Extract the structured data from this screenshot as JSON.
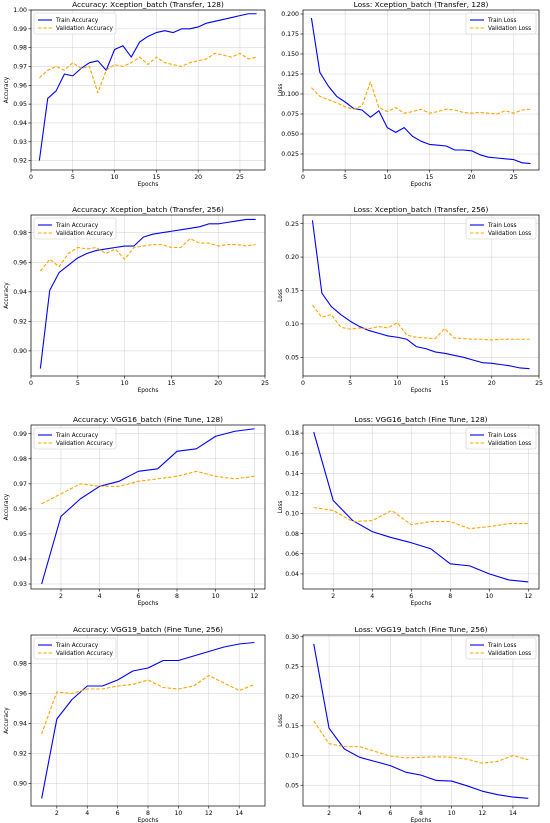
{
  "figure": {
    "train_color": "#0000ff",
    "val_color": "#ffa500"
  },
  "chart_data": [
    {
      "type": "line",
      "title": "Accuracy: Xception_batch (Transfer, 128)",
      "xlabel": "Epochs",
      "ylabel": "Accuracy",
      "xlim": [
        0,
        28
      ],
      "ylim": [
        0.915,
        1.0
      ],
      "xticks": [
        0,
        5,
        10,
        15,
        20,
        25
      ],
      "yticks": [
        0.92,
        0.93,
        0.94,
        0.95,
        0.96,
        0.97,
        0.98,
        0.99,
        1.0
      ],
      "ytick_labels": [
        "0.92",
        "0.93",
        "0.94",
        "0.95",
        "0.96",
        "0.97",
        "0.98",
        "0.99",
        "1.00"
      ],
      "legend": "top-left",
      "grid": true,
      "x": [
        1,
        2,
        3,
        4,
        5,
        6,
        7,
        8,
        9,
        10,
        11,
        12,
        13,
        14,
        15,
        16,
        17,
        18,
        19,
        20,
        21,
        22,
        23,
        24,
        25,
        26,
        27
      ],
      "series": [
        {
          "name": "Train Accuracy",
          "style": "solid",
          "values": [
            0.92,
            0.953,
            0.957,
            0.966,
            0.965,
            0.969,
            0.972,
            0.973,
            0.968,
            0.979,
            0.981,
            0.975,
            0.983,
            0.986,
            0.988,
            0.989,
            0.988,
            0.99,
            0.99,
            0.991,
            0.993,
            0.994,
            0.995,
            0.996,
            0.997,
            0.998,
            0.998
          ]
        },
        {
          "name": "Validation Accuracy",
          "style": "dashed",
          "values": [
            0.964,
            0.968,
            0.97,
            0.968,
            0.972,
            0.969,
            0.97,
            0.956,
            0.968,
            0.971,
            0.97,
            0.972,
            0.975,
            0.971,
            0.975,
            0.972,
            0.971,
            0.97,
            0.972,
            0.973,
            0.974,
            0.977,
            0.976,
            0.975,
            0.977,
            0.974,
            0.975
          ]
        }
      ]
    },
    {
      "type": "line",
      "title": "Loss: Xception_batch (Transfer, 128)",
      "xlabel": "Epochs",
      "ylabel": "Loss",
      "xlim": [
        0,
        28
      ],
      "ylim": [
        0.005,
        0.205
      ],
      "xticks": [
        0,
        5,
        10,
        15,
        20,
        25
      ],
      "yticks": [
        0.025,
        0.05,
        0.075,
        0.1,
        0.125,
        0.15,
        0.175,
        0.2
      ],
      "ytick_labels": [
        "0.025",
        "0.050",
        "0.075",
        "0.100",
        "0.125",
        "0.150",
        "0.175",
        "0.200"
      ],
      "legend": "top-right",
      "grid": true,
      "x": [
        1,
        2,
        3,
        4,
        5,
        6,
        7,
        8,
        9,
        10,
        11,
        12,
        13,
        14,
        15,
        16,
        17,
        18,
        19,
        20,
        21,
        22,
        23,
        24,
        25,
        26,
        27
      ],
      "series": [
        {
          "name": "Train Loss",
          "style": "solid",
          "values": [
            0.195,
            0.127,
            0.11,
            0.097,
            0.09,
            0.082,
            0.08,
            0.071,
            0.079,
            0.058,
            0.052,
            0.058,
            0.047,
            0.041,
            0.037,
            0.036,
            0.035,
            0.03,
            0.03,
            0.029,
            0.024,
            0.021,
            0.02,
            0.019,
            0.018,
            0.014,
            0.013
          ]
        },
        {
          "name": "Validation Loss",
          "style": "dashed",
          "values": [
            0.108,
            0.097,
            0.093,
            0.089,
            0.084,
            0.081,
            0.085,
            0.115,
            0.083,
            0.078,
            0.083,
            0.076,
            0.078,
            0.081,
            0.076,
            0.078,
            0.081,
            0.08,
            0.077,
            0.076,
            0.077,
            0.076,
            0.075,
            0.079,
            0.076,
            0.08,
            0.081
          ]
        }
      ]
    },
    {
      "type": "line",
      "title": "Accuracy: Xception_batch (Transfer, 256)",
      "xlabel": "Epochs",
      "ylabel": "Accuracy",
      "xlim": [
        0,
        25
      ],
      "ylim": [
        0.883,
        0.992
      ],
      "xticks": [
        0,
        5,
        10,
        15,
        20,
        25
      ],
      "yticks": [
        0.9,
        0.92,
        0.94,
        0.96,
        0.98
      ],
      "ytick_labels": [
        "0.90",
        "0.92",
        "0.94",
        "0.96",
        "0.98"
      ],
      "legend": "top-left",
      "grid": true,
      "x": [
        1,
        2,
        3,
        4,
        5,
        6,
        7,
        8,
        9,
        10,
        11,
        12,
        13,
        14,
        15,
        16,
        17,
        18,
        19,
        20,
        21,
        22,
        23,
        24
      ],
      "series": [
        {
          "name": "Train Accuracy",
          "style": "solid",
          "values": [
            0.888,
            0.941,
            0.953,
            0.958,
            0.963,
            0.966,
            0.968,
            0.969,
            0.97,
            0.971,
            0.971,
            0.977,
            0.979,
            0.98,
            0.981,
            0.982,
            0.983,
            0.984,
            0.986,
            0.986,
            0.987,
            0.988,
            0.989,
            0.989
          ]
        },
        {
          "name": "Validation Accuracy",
          "style": "dashed",
          "values": [
            0.954,
            0.962,
            0.957,
            0.966,
            0.97,
            0.969,
            0.97,
            0.966,
            0.969,
            0.962,
            0.97,
            0.971,
            0.972,
            0.972,
            0.97,
            0.97,
            0.976,
            0.973,
            0.973,
            0.971,
            0.972,
            0.972,
            0.971,
            0.972
          ]
        }
      ]
    },
    {
      "type": "line",
      "title": "Loss: Xception_batch (Transfer, 256)",
      "xlabel": "Epochs",
      "ylabel": "Loss",
      "xlim": [
        0,
        25
      ],
      "ylim": [
        0.022,
        0.263
      ],
      "xticks": [
        0,
        5,
        10,
        15,
        20,
        25
      ],
      "yticks": [
        0.05,
        0.1,
        0.15,
        0.2,
        0.25
      ],
      "ytick_labels": [
        "0.05",
        "0.10",
        "0.15",
        "0.20",
        "0.25"
      ],
      "legend": "top-right",
      "grid": true,
      "x": [
        1,
        2,
        3,
        4,
        5,
        6,
        7,
        8,
        9,
        10,
        11,
        12,
        13,
        14,
        15,
        16,
        17,
        18,
        19,
        20,
        21,
        22,
        23,
        24
      ],
      "series": [
        {
          "name": "Train Loss",
          "style": "solid",
          "values": [
            0.255,
            0.146,
            0.126,
            0.114,
            0.104,
            0.096,
            0.09,
            0.086,
            0.082,
            0.08,
            0.077,
            0.066,
            0.063,
            0.058,
            0.056,
            0.053,
            0.05,
            0.046,
            0.042,
            0.041,
            0.039,
            0.037,
            0.034,
            0.033
          ]
        },
        {
          "name": "Validation Loss",
          "style": "dashed",
          "values": [
            0.128,
            0.11,
            0.114,
            0.095,
            0.092,
            0.094,
            0.093,
            0.096,
            0.094,
            0.102,
            0.083,
            0.08,
            0.079,
            0.078,
            0.093,
            0.079,
            0.078,
            0.077,
            0.077,
            0.076,
            0.077,
            0.077,
            0.077,
            0.077
          ]
        }
      ]
    },
    {
      "type": "line",
      "title": "Accuracy: VGG16_batch (Fine Tune, 128)",
      "xlabel": "Epochs",
      "ylabel": "Accuracy",
      "xlim": [
        0.45,
        12.55
      ],
      "ylim": [
        0.928,
        0.9935
      ],
      "xticks": [
        2,
        4,
        6,
        8,
        10,
        12
      ],
      "yticks": [
        0.93,
        0.94,
        0.95,
        0.96,
        0.97,
        0.98,
        0.99
      ],
      "ytick_labels": [
        "0.93",
        "0.94",
        "0.95",
        "0.96",
        "0.97",
        "0.98",
        "0.99"
      ],
      "legend": "top-left",
      "grid": true,
      "x": [
        1,
        2,
        3,
        4,
        5,
        6,
        7,
        8,
        9,
        10,
        11,
        12
      ],
      "series": [
        {
          "name": "Train Accuracy",
          "style": "solid",
          "values": [
            0.93,
            0.957,
            0.964,
            0.969,
            0.971,
            0.975,
            0.976,
            0.983,
            0.984,
            0.989,
            0.991,
            0.992
          ]
        },
        {
          "name": "Validation Accuracy",
          "style": "dashed",
          "values": [
            0.962,
            0.966,
            0.97,
            0.969,
            0.969,
            0.971,
            0.972,
            0.973,
            0.975,
            0.973,
            0.972,
            0.973
          ]
        }
      ]
    },
    {
      "type": "line",
      "title": "Loss: VGG16_batch (Fine Tune, 128)",
      "xlabel": "Epochs",
      "ylabel": "Loss",
      "xlim": [
        0.45,
        12.55
      ],
      "ylim": [
        0.025,
        0.188
      ],
      "xticks": [
        2,
        4,
        6,
        8,
        10,
        12
      ],
      "yticks": [
        0.04,
        0.06,
        0.08,
        0.1,
        0.12,
        0.14,
        0.16,
        0.18
      ],
      "ytick_labels": [
        "0.04",
        "0.06",
        "0.08",
        "0.10",
        "0.12",
        "0.14",
        "0.16",
        "0.18"
      ],
      "legend": "top-right",
      "grid": true,
      "x": [
        1,
        2,
        3,
        4,
        5,
        6,
        7,
        8,
        9,
        10,
        11,
        12
      ],
      "series": [
        {
          "name": "Train Loss",
          "style": "solid",
          "values": [
            0.181,
            0.113,
            0.093,
            0.082,
            0.076,
            0.071,
            0.065,
            0.05,
            0.048,
            0.04,
            0.034,
            0.032
          ]
        },
        {
          "name": "Validation Loss",
          "style": "dashed",
          "values": [
            0.106,
            0.103,
            0.092,
            0.093,
            0.103,
            0.089,
            0.092,
            0.092,
            0.085,
            0.087,
            0.09,
            0.09
          ]
        }
      ]
    },
    {
      "type": "line",
      "title": "Accuracy: VGG19_batch (Fine Tune, 256)",
      "xlabel": "Epochs",
      "ylabel": "Accuracy",
      "xlim": [
        0.3,
        15.7
      ],
      "ylim": [
        0.885,
        0.999
      ],
      "xticks": [
        2,
        4,
        6,
        8,
        10,
        12,
        14
      ],
      "yticks": [
        0.9,
        0.92,
        0.94,
        0.96,
        0.98
      ],
      "ytick_labels": [
        "0.90",
        "0.92",
        "0.94",
        "0.96",
        "0.98"
      ],
      "legend": "top-left",
      "grid": true,
      "x": [
        1,
        2,
        3,
        4,
        5,
        6,
        7,
        8,
        9,
        10,
        11,
        12,
        13,
        14,
        15
      ],
      "series": [
        {
          "name": "Train Accuracy",
          "style": "solid",
          "values": [
            0.89,
            0.943,
            0.956,
            0.965,
            0.965,
            0.969,
            0.975,
            0.977,
            0.982,
            0.982,
            0.985,
            0.988,
            0.991,
            0.993,
            0.994
          ]
        },
        {
          "name": "Validation Accuracy",
          "style": "dashed",
          "values": [
            0.933,
            0.961,
            0.96,
            0.963,
            0.963,
            0.965,
            0.966,
            0.969,
            0.964,
            0.963,
            0.965,
            0.972,
            0.967,
            0.962,
            0.966
          ]
        }
      ]
    },
    {
      "type": "line",
      "title": "Loss: VGG19_batch (Fine Tune, 256)",
      "xlabel": "Epochs",
      "ylabel": "Loss",
      "xlim": [
        0.3,
        15.7
      ],
      "ylim": [
        0.015,
        0.303
      ],
      "xticks": [
        2,
        4,
        6,
        8,
        10,
        12,
        14
      ],
      "yticks": [
        0.05,
        0.1,
        0.15,
        0.2,
        0.25,
        0.3
      ],
      "ytick_labels": [
        "0.05",
        "0.10",
        "0.15",
        "0.20",
        "0.25",
        "0.30"
      ],
      "legend": "top-right",
      "grid": true,
      "x": [
        1,
        2,
        3,
        4,
        5,
        6,
        7,
        8,
        9,
        10,
        11,
        12,
        13,
        14,
        15
      ],
      "series": [
        {
          "name": "Train Loss",
          "style": "solid",
          "values": [
            0.288,
            0.146,
            0.111,
            0.097,
            0.09,
            0.083,
            0.072,
            0.067,
            0.058,
            0.057,
            0.049,
            0.04,
            0.034,
            0.03,
            0.028
          ]
        },
        {
          "name": "Validation Loss",
          "style": "dashed",
          "values": [
            0.158,
            0.12,
            0.115,
            0.115,
            0.107,
            0.099,
            0.096,
            0.097,
            0.098,
            0.097,
            0.094,
            0.087,
            0.09,
            0.1,
            0.093
          ]
        }
      ]
    }
  ]
}
